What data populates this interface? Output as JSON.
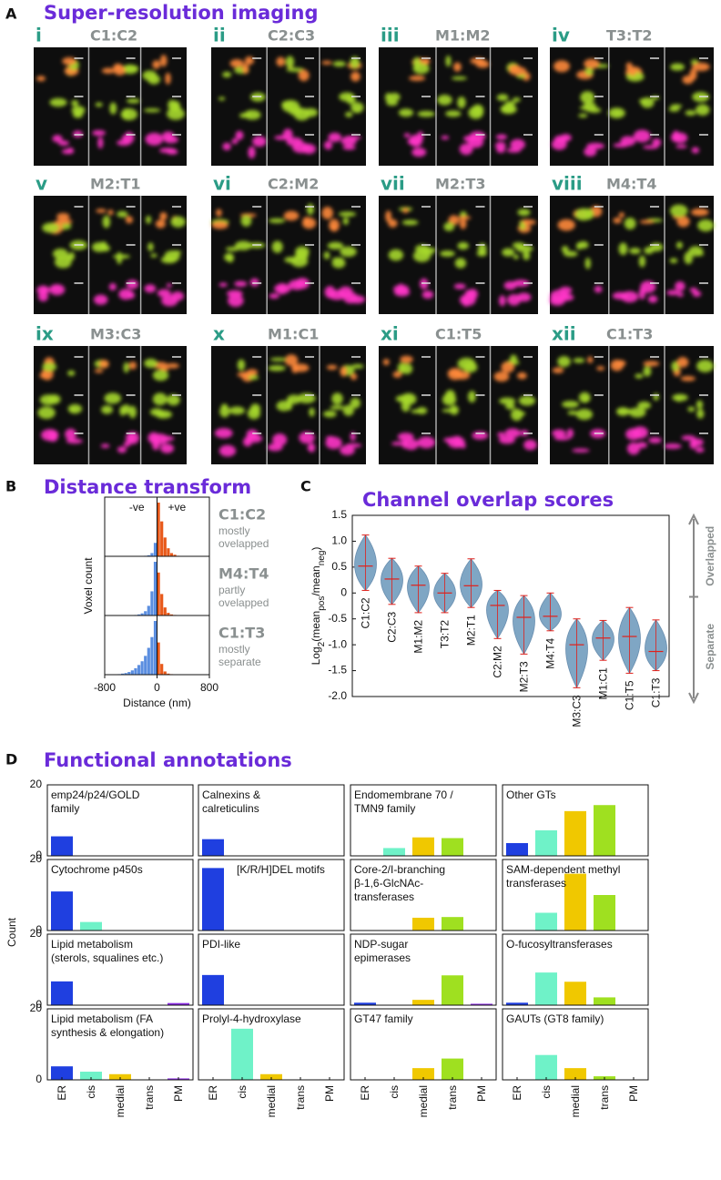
{
  "panel_a": {
    "panel_label": "A",
    "title": "Super-resolution imaging",
    "images": [
      {
        "numeral": "i",
        "pair": "C1:C2"
      },
      {
        "numeral": "ii",
        "pair": "C2:C3"
      },
      {
        "numeral": "iii",
        "pair": "M1:M2"
      },
      {
        "numeral": "iv",
        "pair": "T3:T2"
      },
      {
        "numeral": "v",
        "pair": "M2:T1"
      },
      {
        "numeral": "vi",
        "pair": "C2:M2"
      },
      {
        "numeral": "vii",
        "pair": "M2:T3"
      },
      {
        "numeral": "viii",
        "pair": "M4:T4"
      },
      {
        "numeral": "ix",
        "pair": "M3:C3"
      },
      {
        "numeral": "x",
        "pair": "M1:C1"
      },
      {
        "numeral": "xi",
        "pair": "C1:T5"
      },
      {
        "numeral": "xii",
        "pair": "C1:T3"
      }
    ]
  },
  "chart_data": [
    {
      "type": "histogram",
      "panel_label": "B",
      "title": "Distance transform",
      "xlabel": "Distance (nm)",
      "ylabel": "Voxel count",
      "neg_label": "-ve",
      "pos_label": "+ve",
      "neg_color": "#5b8ee0",
      "pos_color": "#e8591a",
      "xlim": [
        -800,
        800
      ],
      "xticks": [
        -800,
        0,
        800
      ],
      "ylim": [
        0,
        100
      ],
      "bins": [
        -600,
        -550,
        -500,
        -450,
        -400,
        -350,
        -300,
        -250,
        -200,
        -150,
        -100,
        -50,
        0,
        50,
        100,
        150,
        200,
        250,
        300,
        350,
        400
      ],
      "panels": [
        {
          "name": "C1:C2",
          "description": [
            "mostly",
            "ovelapped"
          ],
          "counts": [
            0,
            0,
            0,
            0,
            0,
            0,
            0,
            0,
            1,
            2,
            6,
            25,
            100,
            65,
            35,
            15,
            6,
            3,
            1,
            0
          ]
        },
        {
          "name": "M4:T4",
          "description": [
            "partly",
            "ovelapped"
          ],
          "counts": [
            0,
            0,
            0,
            0,
            0,
            1,
            2,
            4,
            8,
            18,
            45,
            100,
            80,
            40,
            15,
            5,
            2,
            1,
            0,
            0
          ]
        },
        {
          "name": "C1:T3",
          "description": [
            "mostly",
            "separate"
          ],
          "counts": [
            1,
            2,
            3,
            5,
            8,
            12,
            18,
            25,
            35,
            50,
            70,
            100,
            60,
            20,
            6,
            2,
            1,
            0,
            0,
            0
          ]
        }
      ]
    },
    {
      "type": "violin",
      "panel_label": "C",
      "title": "Channel overlap scores",
      "ylabel_parts": [
        "Log",
        "2",
        "(mean",
        "pos",
        "/mean",
        "neg",
        ")"
      ],
      "categories": [
        "C1:C2",
        "C2:C3",
        "M1:M2",
        "T3:T2",
        "M2:T1",
        "C2:M2",
        "M2:T3",
        "M4:T4",
        "M3:C3",
        "M1:C1",
        "C1:T5",
        "C1:T3"
      ],
      "values": [
        0.52,
        0.27,
        0.15,
        0.0,
        0.14,
        -0.24,
        -0.47,
        -0.45,
        -1.0,
        -0.87,
        -0.84,
        -1.13
      ],
      "mins": [
        0.05,
        -0.22,
        -0.38,
        -0.38,
        -0.28,
        -0.88,
        -1.18,
        -0.73,
        -1.83,
        -1.3,
        -1.55,
        -1.5
      ],
      "maxs": [
        1.12,
        0.67,
        0.52,
        0.38,
        0.66,
        0.05,
        -0.05,
        0.0,
        -0.5,
        -0.53,
        -0.28,
        -0.52
      ],
      "color": "#7fa6c4",
      "median_color": "#e0201a",
      "ylim": [
        -2,
        1.5
      ],
      "yticks": [
        {
          "value": -2,
          "label": "-2.0"
        },
        -1.5,
        {
          "value": -1,
          "label": "-1.0"
        },
        -0.5,
        0,
        0.5,
        {
          "value": 1,
          "label": "1.0"
        },
        1.5
      ],
      "arrow_labels": {
        "top": "Overlapped",
        "bottom": "Separate"
      }
    },
    {
      "type": "bar",
      "panel_label": "D",
      "title": "Functional annotations",
      "ylabel": "Count",
      "categories": [
        "ER",
        "cis",
        "medial",
        "trans",
        "PM"
      ],
      "colors": [
        "#1f3fe0",
        "#6ff2c8",
        "#f0c800",
        "#9fe020",
        "#8a2be2"
      ],
      "ylim": [
        0,
        20
      ],
      "yticks": [
        0,
        20
      ],
      "panels": [
        {
          "title_lines": [
            "emp24/p24/GOLD",
            "family"
          ],
          "values": [
            5.5,
            0,
            0,
            0,
            0
          ]
        },
        {
          "title_lines": [
            "Calnexins &",
            "calreticulins"
          ],
          "values": [
            4.7,
            0,
            0,
            0,
            0
          ]
        },
        {
          "title_lines": [
            "Endomembrane 70 /",
            "TMN9 family"
          ],
          "values": [
            0,
            2.2,
            5.2,
            5,
            0
          ]
        },
        {
          "title_lines": [
            "Other GTs"
          ],
          "values": [
            3.6,
            7.2,
            12.6,
            14.3,
            0
          ]
        },
        {
          "title_lines": [
            "Cytochrome p450s"
          ],
          "values": [
            11,
            2.4,
            0,
            0,
            0
          ]
        },
        {
          "title_lines": [
            "[K/R/H]DEL motifs"
          ],
          "values": [
            17.6,
            0,
            0,
            0,
            0
          ]
        },
        {
          "title_lines": [
            "Core-2/I-branching",
            "β-1,6-GlcNAc-",
            "transferases"
          ],
          "values": [
            0,
            0,
            3.6,
            3.8,
            0
          ]
        },
        {
          "title_lines": [
            "SAM-dependent methyl",
            "transferases"
          ],
          "values": [
            0,
            5,
            16,
            10,
            0
          ]
        },
        {
          "title_lines": [
            "Lipid metabolism",
            "(sterols, squalines etc.)"
          ],
          "values": [
            6.7,
            0,
            0,
            0,
            0.6
          ]
        },
        {
          "title_lines": [
            "PDI-like"
          ],
          "values": [
            8.5,
            0,
            0,
            0,
            0
          ]
        },
        {
          "title_lines": [
            "NDP-sugar",
            "epimerases"
          ],
          "values": [
            0.7,
            0,
            1.5,
            8.4,
            0.4
          ]
        },
        {
          "title_lines": [
            "O-fucosyltransferases"
          ],
          "values": [
            0.7,
            9.2,
            6.6,
            2.2,
            0
          ]
        },
        {
          "title_lines": [
            "Lipid metabolism (FA",
            "synthesis & elongation)"
          ],
          "values": [
            3.8,
            2.3,
            1.6,
            0,
            0.4
          ]
        },
        {
          "title_lines": [
            "Prolyl-4-hydroxylase"
          ],
          "values": [
            0,
            14.4,
            1.6,
            0,
            0
          ]
        },
        {
          "title_lines": [
            "GT47 family"
          ],
          "values": [
            0,
            0,
            3.3,
            6,
            0
          ]
        },
        {
          "title_lines": [
            "GAUTs (GT8 family)"
          ],
          "values": [
            0,
            7,
            3.3,
            1,
            0
          ]
        }
      ]
    }
  ]
}
